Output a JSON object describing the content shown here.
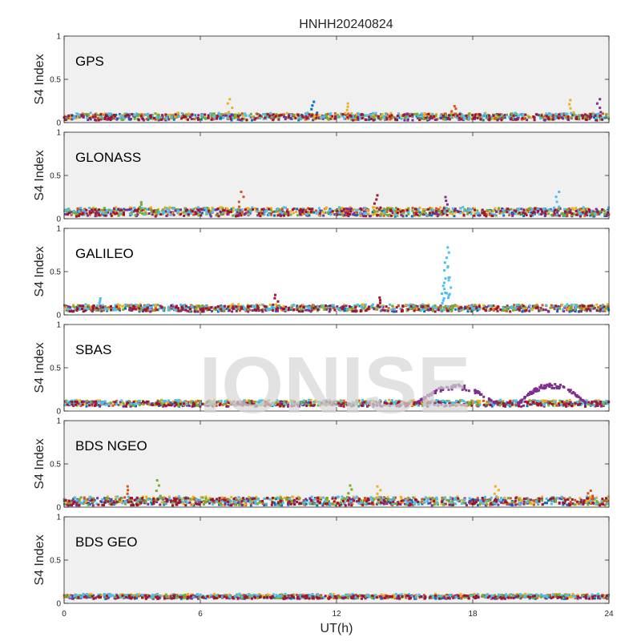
{
  "chart_data": {
    "type": "scatter",
    "title": "HNHH20240824",
    "xlabel": "UT(h)",
    "ylabel": "S4 Index",
    "xlim": [
      0,
      24
    ],
    "ylim": [
      0,
      1
    ],
    "xticks": [
      0,
      6,
      12,
      18,
      24
    ],
    "yticks": [
      0,
      0.5,
      1
    ],
    "xtick_labels": [
      "0",
      "6",
      "12",
      "18",
      "24"
    ],
    "ytick_labels": [
      "0",
      "0.5",
      "1"
    ],
    "watermark": "IONISE",
    "series_colors": [
      "#0072BD",
      "#D95319",
      "#EDB120",
      "#7E2F8E",
      "#77AC30",
      "#4DBEEE",
      "#A2142F"
    ],
    "panels": [
      {
        "name": "GPS",
        "baseline": 0.07,
        "noise": 0.035,
        "spikes": [
          {
            "x": 7.3,
            "y": 0.27,
            "color": "#EDB120"
          },
          {
            "x": 11.0,
            "y": 0.24,
            "color": "#0072BD"
          },
          {
            "x": 12.5,
            "y": 0.22,
            "color": "#EDB120"
          },
          {
            "x": 22.3,
            "y": 0.26,
            "color": "#EDB120"
          },
          {
            "x": 23.6,
            "y": 0.27,
            "color": "#7E2F8E"
          },
          {
            "x": 17.2,
            "y": 0.19,
            "color": "#D95319"
          }
        ]
      },
      {
        "name": "GLONASS",
        "baseline": 0.08,
        "noise": 0.045,
        "spikes": [
          {
            "x": 7.8,
            "y": 0.31,
            "color": "#D95319"
          },
          {
            "x": 13.8,
            "y": 0.27,
            "color": "#A2142F"
          },
          {
            "x": 16.8,
            "y": 0.25,
            "color": "#7E2F8E"
          },
          {
            "x": 21.8,
            "y": 0.31,
            "color": "#4DBEEE"
          },
          {
            "x": 3.4,
            "y": 0.19,
            "color": "#77AC30"
          }
        ]
      },
      {
        "name": "GALILEO",
        "baseline": 0.08,
        "noise": 0.035,
        "spikes": [
          {
            "x": 16.9,
            "y": 0.78,
            "color": "#4DBEEE"
          },
          {
            "x": 16.95,
            "y": 0.72,
            "color": "#4DBEEE"
          },
          {
            "x": 16.85,
            "y": 0.66,
            "color": "#4DBEEE"
          },
          {
            "x": 16.9,
            "y": 0.55,
            "color": "#4DBEEE"
          },
          {
            "x": 16.8,
            "y": 0.42,
            "color": "#4DBEEE"
          },
          {
            "x": 16.75,
            "y": 0.3,
            "color": "#4DBEEE"
          },
          {
            "x": 9.3,
            "y": 0.23,
            "color": "#A2142F"
          },
          {
            "x": 13.9,
            "y": 0.2,
            "color": "#A2142F"
          },
          {
            "x": 1.6,
            "y": 0.19,
            "color": "#4DBEEE"
          }
        ]
      },
      {
        "name": "SBAS",
        "baseline": 0.09,
        "noise": 0.03,
        "bumps": [
          {
            "from": 15.5,
            "to": 19.0,
            "peak": 0.3,
            "color": "#7E2F8E"
          },
          {
            "from": 20.0,
            "to": 23.0,
            "peak": 0.32,
            "color": "#7E2F8E"
          }
        ],
        "spikes": []
      },
      {
        "name": "BDS NGEO",
        "baseline": 0.07,
        "noise": 0.045,
        "spikes": [
          {
            "x": 4.1,
            "y": 0.31,
            "color": "#77AC30"
          },
          {
            "x": 2.8,
            "y": 0.24,
            "color": "#D95319"
          },
          {
            "x": 12.6,
            "y": 0.25,
            "color": "#77AC30"
          },
          {
            "x": 13.8,
            "y": 0.24,
            "color": "#EDB120"
          },
          {
            "x": 19.0,
            "y": 0.24,
            "color": "#EDB120"
          },
          {
            "x": 23.2,
            "y": 0.19,
            "color": "#D95319"
          }
        ]
      },
      {
        "name": "BDS GEO",
        "baseline": 0.08,
        "noise": 0.02,
        "spikes": []
      }
    ]
  }
}
